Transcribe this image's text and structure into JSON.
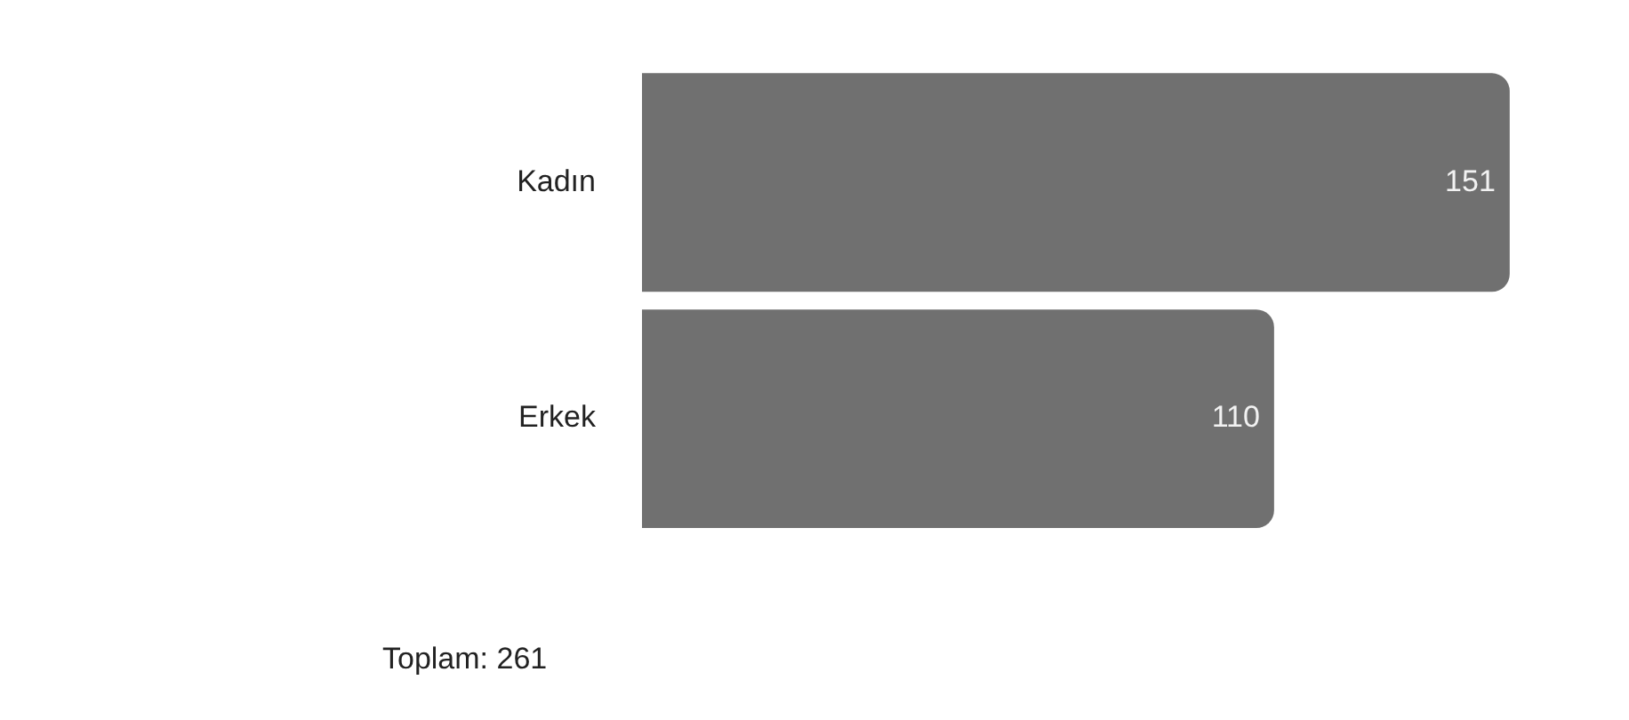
{
  "chart_data": {
    "type": "bar",
    "orientation": "horizontal",
    "categories": [
      "Kadın",
      "Erkek"
    ],
    "values": [
      151,
      110
    ],
    "color": "#707070",
    "data_labels": true,
    "annotations": [
      "Toplam: 261"
    ]
  }
}
